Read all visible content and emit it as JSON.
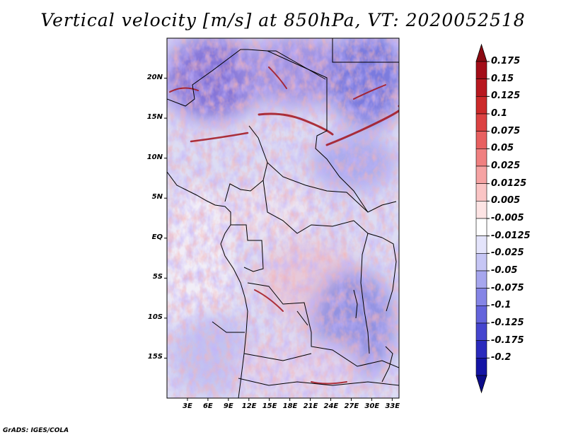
{
  "title": "Vertical velocity [m/s] at 850hPa, VT: 2020052518",
  "map": {
    "region": "Central Africa",
    "variable": "vertical velocity",
    "level": "850hPa",
    "valid_time": "2020052518",
    "lon_range": [
      0,
      34
    ],
    "lat_range": [
      -20,
      25
    ],
    "lat_ticks": [
      {
        "value": 20,
        "label": "20N"
      },
      {
        "value": 15,
        "label": "15N"
      },
      {
        "value": 10,
        "label": "10N"
      },
      {
        "value": 5,
        "label": "5N"
      },
      {
        "value": 0,
        "label": "EQ"
      },
      {
        "value": -5,
        "label": "5S"
      },
      {
        "value": -10,
        "label": "10S"
      },
      {
        "value": -15,
        "label": "15S"
      }
    ],
    "lon_ticks": [
      {
        "value": 3,
        "label": "3E"
      },
      {
        "value": 6,
        "label": "6E"
      },
      {
        "value": 9,
        "label": "9E"
      },
      {
        "value": 12,
        "label": "12E"
      },
      {
        "value": 15,
        "label": "15E"
      },
      {
        "value": 18,
        "label": "18E"
      },
      {
        "value": 21,
        "label": "21E"
      },
      {
        "value": 24,
        "label": "24E"
      },
      {
        "value": 27,
        "label": "27E"
      },
      {
        "value": 30,
        "label": "30E"
      },
      {
        "value": 33,
        "label": "33E"
      }
    ]
  },
  "colorbar": {
    "levels": [
      {
        "label": "0.175",
        "color": "#a30d18"
      },
      {
        "label": "0.15",
        "color": "#b8181f"
      },
      {
        "label": "0.125",
        "color": "#cc2a2a"
      },
      {
        "label": "0.1",
        "color": "#dc4242"
      },
      {
        "label": "0.075",
        "color": "#e86060"
      },
      {
        "label": "0.05",
        "color": "#f08080"
      },
      {
        "label": "0.025",
        "color": "#f6a3a3"
      },
      {
        "label": "0.0125",
        "color": "#fac5c5"
      },
      {
        "label": "0.005",
        "color": "#fde4e4"
      },
      {
        "label": "-0.005",
        "color": "#ffffff"
      },
      {
        "label": "-0.0125",
        "color": "#e4e4fb"
      },
      {
        "label": "-0.025",
        "color": "#c6c6f5"
      },
      {
        "label": "-0.05",
        "color": "#a6a6ee"
      },
      {
        "label": "-0.075",
        "color": "#8585e6"
      },
      {
        "label": "-0.1",
        "color": "#6464dc"
      },
      {
        "label": "-0.125",
        "color": "#4545cf"
      },
      {
        "label": "-0.175",
        "color": "#2a2abd"
      },
      {
        "label": "-0.2",
        "color": "#1414a5"
      }
    ],
    "top_color": "#8b0a12",
    "bottom_color": "#0c0c8a"
  },
  "footer": "GrADS: IGES/COLA"
}
